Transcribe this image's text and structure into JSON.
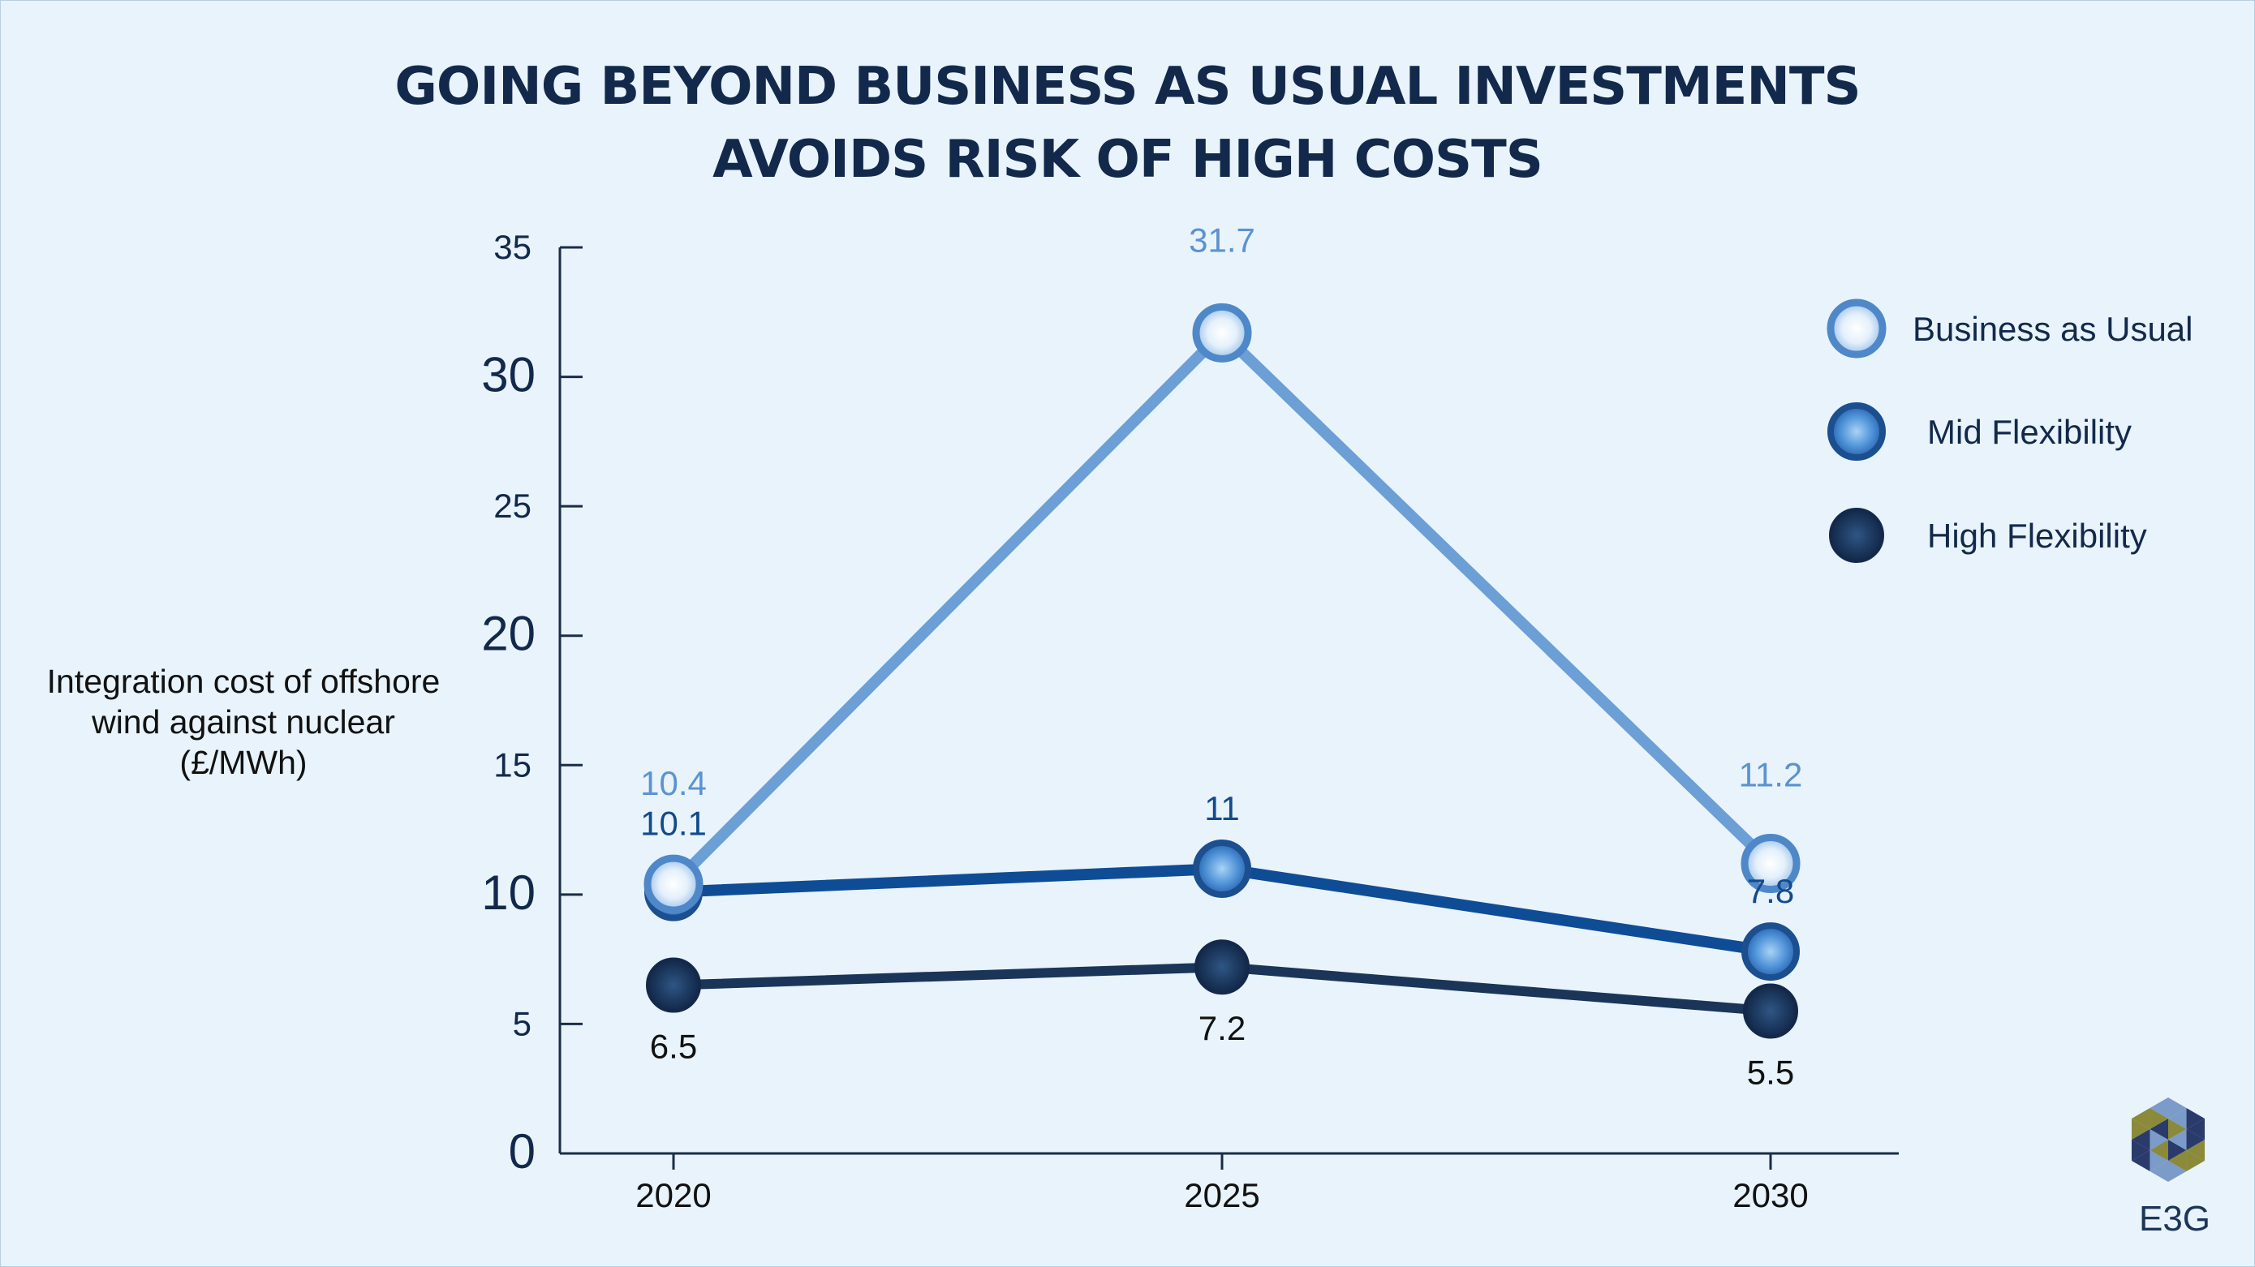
{
  "chart_data": {
    "type": "line",
    "title": "GOING BEYOND BUSINESS AS USUAL INVESTMENTS AVOIDS RISK OF HIGH COSTS",
    "title_lines": [
      "GOING BEYOND BUSINESS AS USUAL INVESTMENTS",
      "AVOIDS RISK OF HIGH COSTS"
    ],
    "ylabel": "Integration cost of offshore wind against nuclear (£/MWh)",
    "ylabel_lines": [
      "Integration cost of offshore",
      "wind against nuclear",
      "(£/MWh)"
    ],
    "xlabel": "",
    "categories": [
      "2020",
      "2025",
      "2030"
    ],
    "ylim": [
      0,
      35
    ],
    "yticks": [
      "0",
      "5",
      "10",
      "15",
      "20",
      "25",
      "30",
      "35"
    ],
    "series": [
      {
        "name": "Business as Usual",
        "values": [
          10.4,
          31.7,
          11.2
        ],
        "labels": [
          "10.4",
          "31.7",
          "11.2"
        ],
        "color": "#6b9fd6"
      },
      {
        "name": "Mid Flexibility",
        "values": [
          10.1,
          11,
          7.8
        ],
        "labels": [
          "10.1",
          "11",
          "7.8"
        ],
        "color": "#0f4c96"
      },
      {
        "name": "High Flexibility",
        "values": [
          6.5,
          7.2,
          5.5
        ],
        "labels": [
          "6.5",
          "7.2",
          "5.5"
        ],
        "color": "#1a3558"
      }
    ],
    "grid": false,
    "legend_position": "right"
  },
  "logo": {
    "text": "E3G",
    "colors": [
      "#2a3a6b",
      "#8a8a3a",
      "#7b9bc8"
    ]
  }
}
